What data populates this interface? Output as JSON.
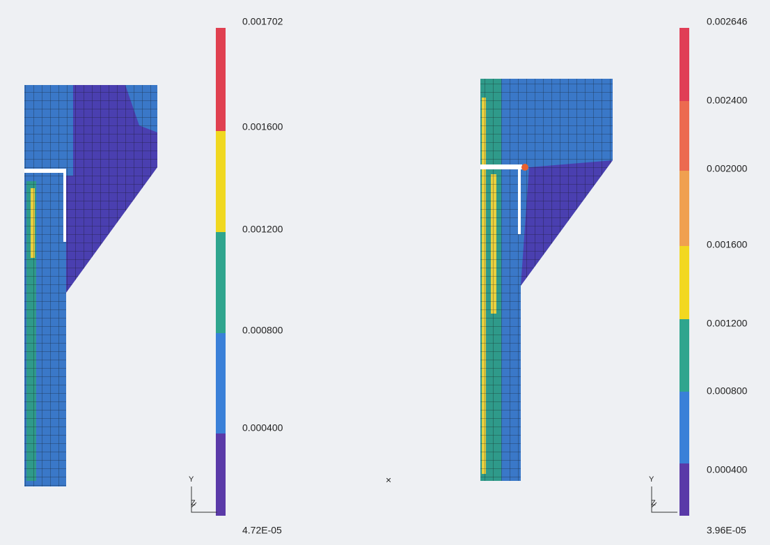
{
  "panels": [
    {
      "colorbar_labels": [
        "0.001702",
        "0.001600",
        "0.001200",
        "0.000800",
        "0.000400",
        "4.72E-05"
      ],
      "axis_labels": [
        "Y",
        "Z"
      ]
    },
    {
      "colorbar_labels": [
        "0.002646",
        "0.002400",
        "0.002000",
        "0.001600",
        "0.001200",
        "0.000800",
        "0.000400",
        "3.96E-05"
      ],
      "axis_labels": [
        "Y",
        "Z"
      ]
    }
  ],
  "center_mark": "×"
}
